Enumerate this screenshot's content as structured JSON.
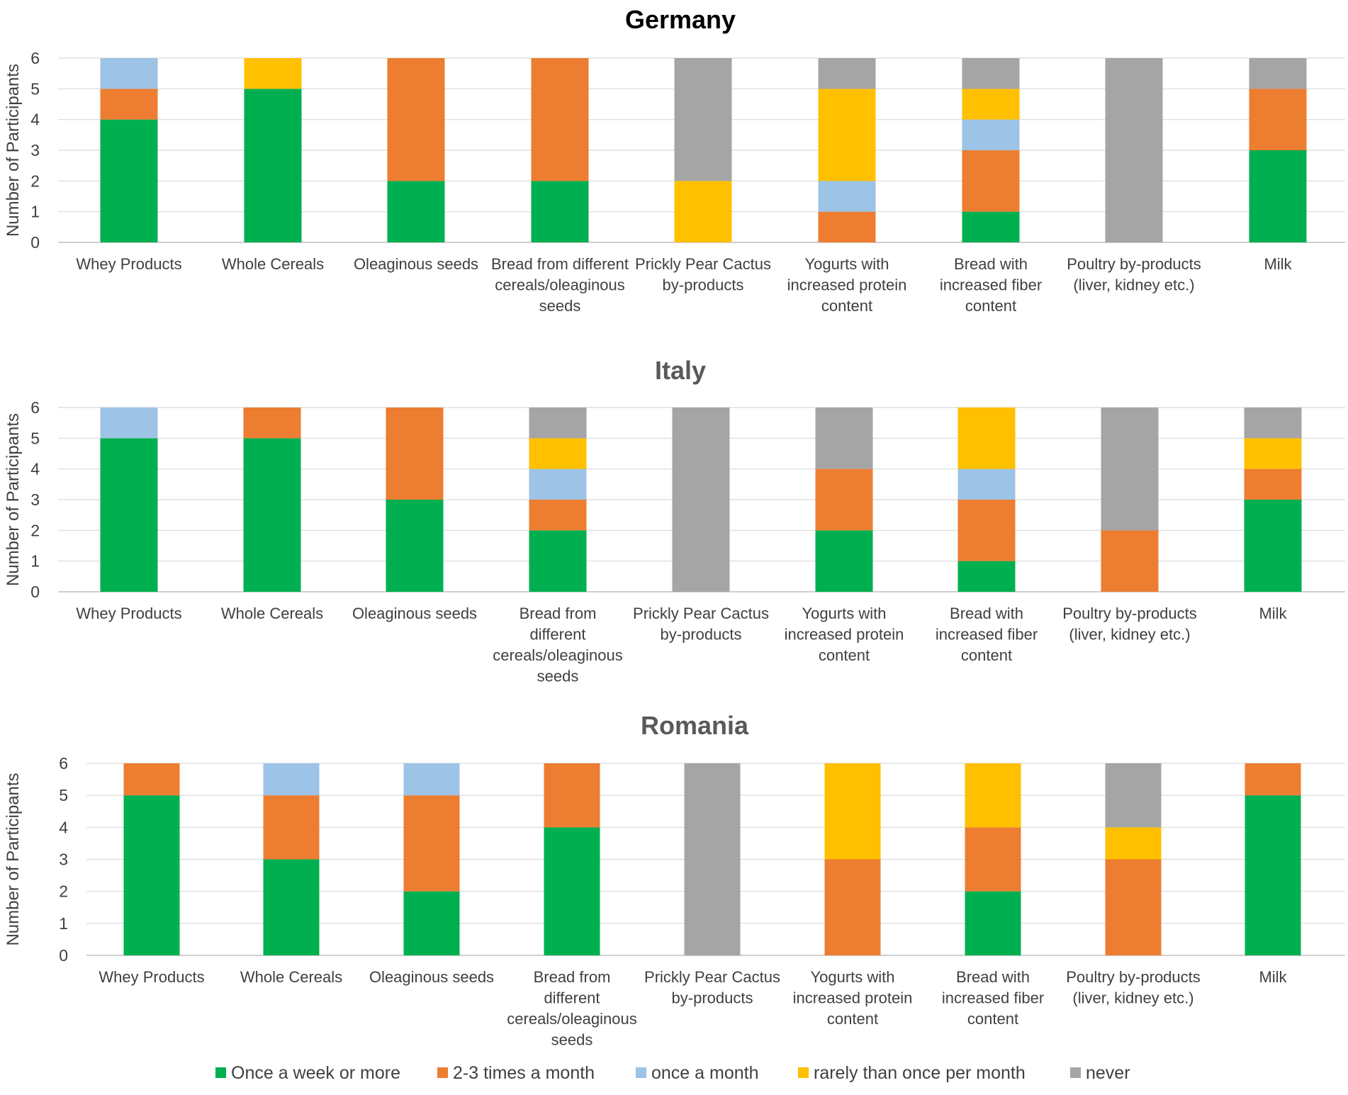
{
  "chart_data": {
    "type": "bar",
    "stacked": true,
    "ylabel": "Number of Participants",
    "ylim": [
      0,
      6
    ],
    "yticks": [
      "0",
      "1",
      "2",
      "3",
      "4",
      "5",
      "6"
    ],
    "categories": [
      "Whey Products",
      "Whole Cereals",
      "Oleaginous seeds",
      "Bread from different cereals/oleaginous seeds",
      "Prickly Pear Cactus by-products",
      "Yogurts with increased protein content",
      "Bread with increased fiber content",
      "Poultry by-products (liver, kidney etc.)",
      "Milk"
    ],
    "legend": [
      {
        "name": "Once a week or more",
        "color": "#00B050"
      },
      {
        "name": "2-3 times a month",
        "color": "#ED7D31"
      },
      {
        "name": "once a month",
        "color": "#9DC3E6"
      },
      {
        "name": "rarely than once per month",
        "color": "#FFC000"
      },
      {
        "name": "never",
        "color": "#A5A5A5"
      }
    ],
    "panels": [
      {
        "title": "Germany",
        "series": [
          {
            "name": "Once a week or more",
            "values": [
              4,
              5,
              2,
              2,
              0,
              0,
              1,
              0,
              3
            ]
          },
          {
            "name": "2-3 times a month",
            "values": [
              1,
              0,
              4,
              4,
              0,
              1,
              2,
              0,
              2
            ]
          },
          {
            "name": "once a month",
            "values": [
              1,
              0,
              0,
              0,
              0,
              1,
              1,
              0,
              0
            ]
          },
          {
            "name": "rarely than once per month",
            "values": [
              0,
              1,
              0,
              0,
              2,
              3,
              1,
              0,
              0
            ]
          },
          {
            "name": "never",
            "values": [
              0,
              0,
              0,
              0,
              4,
              1,
              1,
              6,
              1
            ]
          }
        ]
      },
      {
        "title": "Italy",
        "series": [
          {
            "name": "Once a week or more",
            "values": [
              5,
              5,
              3,
              2,
              0,
              2,
              1,
              0,
              3
            ]
          },
          {
            "name": "2-3 times a month",
            "values": [
              0,
              1,
              3,
              1,
              0,
              2,
              2,
              2,
              1
            ]
          },
          {
            "name": "once a month",
            "values": [
              1,
              0,
              0,
              1,
              0,
              0,
              1,
              0,
              0
            ]
          },
          {
            "name": "rarely than once per month",
            "values": [
              0,
              0,
              0,
              1,
              0,
              0,
              2,
              0,
              1
            ]
          },
          {
            "name": "never",
            "values": [
              0,
              0,
              0,
              1,
              6,
              2,
              0,
              4,
              1
            ]
          }
        ]
      },
      {
        "title": "Romania",
        "series": [
          {
            "name": "Once a week or more",
            "values": [
              5,
              3,
              2,
              4,
              0,
              0,
              2,
              0,
              5
            ]
          },
          {
            "name": "2-3 times a month",
            "values": [
              1,
              2,
              3,
              2,
              0,
              3,
              2,
              3,
              1
            ]
          },
          {
            "name": "once a month",
            "values": [
              0,
              1,
              1,
              0,
              0,
              0,
              0,
              0,
              0
            ]
          },
          {
            "name": "rarely than once per month",
            "values": [
              0,
              0,
              0,
              0,
              0,
              3,
              2,
              1,
              0
            ]
          },
          {
            "name": "never",
            "values": [
              0,
              0,
              0,
              0,
              6,
              0,
              0,
              2,
              0
            ]
          }
        ]
      }
    ]
  }
}
